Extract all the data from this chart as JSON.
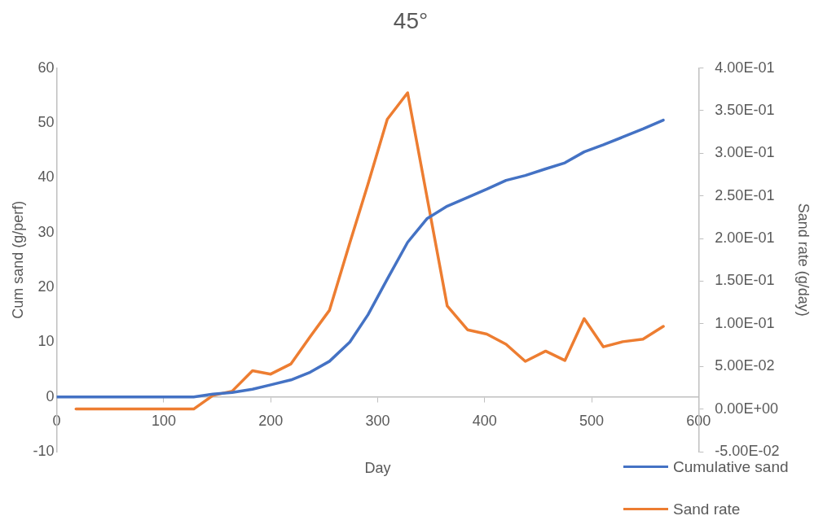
{
  "chart_data": {
    "type": "line",
    "title": "45°",
    "xlabel": "Day",
    "ylabel": "Cum sand (g/perf)",
    "y2label": "Sand rate (g/day)",
    "xlim": [
      0,
      600
    ],
    "xticks": [
      0,
      100,
      200,
      300,
      400,
      500,
      600
    ],
    "ylim": [
      -10,
      60
    ],
    "yticks": [
      -10,
      0,
      10,
      20,
      30,
      40,
      50,
      60
    ],
    "y2lim": [
      -0.05,
      0.4
    ],
    "y2ticks": [
      {
        "value": -0.05,
        "label": "-5.00E-02"
      },
      {
        "value": 0,
        "label": "0.00E+00"
      },
      {
        "value": 0.05,
        "label": "5.00E-02"
      },
      {
        "value": 0.1,
        "label": "1.00E-01"
      },
      {
        "value": 0.15,
        "label": "1.50E-01"
      },
      {
        "value": 0.2,
        "label": "2.00E-01"
      },
      {
        "value": 0.25,
        "label": "2.50E-01"
      },
      {
        "value": 0.3,
        "label": "3.00E-01"
      },
      {
        "value": 0.35,
        "label": "3.50E-01"
      },
      {
        "value": 0.4,
        "label": "4.00E-01"
      }
    ],
    "grid": false,
    "legend": "bottom right",
    "marker": "none",
    "line_style": "solid",
    "series": [
      {
        "name": "Cumulative sand",
        "color": "#4472c4",
        "x": [
          0,
          18,
          37,
          55,
          73,
          91,
          110,
          128,
          146,
          164,
          183,
          200,
          219,
          237,
          255,
          274,
          291,
          309,
          328,
          346,
          365,
          384,
          402,
          420,
          438,
          457,
          475,
          493,
          511,
          529,
          548,
          567
        ],
        "values": [
          0,
          0,
          0,
          0,
          0,
          0,
          0,
          0,
          0.5,
          0.8,
          1.4,
          2.2,
          3.1,
          4.5,
          6.5,
          10,
          15,
          21.5,
          28.2,
          32.5,
          34.8,
          36.4,
          37.9,
          39.5,
          40.4,
          41.6,
          42.7,
          44.7,
          46,
          47.4,
          48.9,
          50.5
        ]
      },
      {
        "name": "Sand rate",
        "color": "#ed7d31",
        "axis": "y2",
        "x": [
          18,
          37,
          55,
          73,
          91,
          110,
          128,
          146,
          164,
          183,
          200,
          219,
          237,
          255,
          274,
          291,
          309,
          328,
          365,
          384,
          402,
          420,
          438,
          457,
          475,
          493,
          511,
          529,
          548,
          567
        ],
        "values": [
          0,
          0,
          0,
          0,
          0,
          0,
          0,
          0.016,
          0.021,
          0.045,
          0.041,
          0.053,
          0.085,
          0.116,
          0.195,
          0.264,
          0.34,
          0.371,
          0.121,
          0.093,
          0.088,
          0.076,
          0.056,
          0.068,
          0.057,
          0.106,
          0.073,
          0.079,
          0.082,
          0.097
        ]
      }
    ]
  }
}
